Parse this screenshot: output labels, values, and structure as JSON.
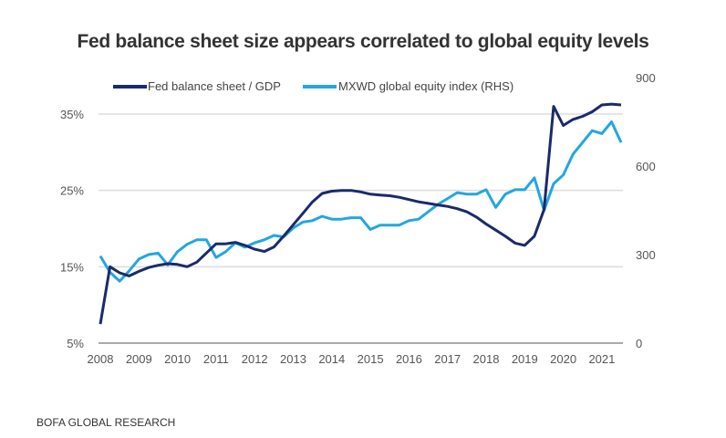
{
  "chart_data": {
    "type": "line",
    "title": "Fed balance sheet size appears correlated to global equity levels",
    "source": "BOFA GLOBAL RESEARCH",
    "x_ticks": [
      "2008",
      "2009",
      "2010",
      "2011",
      "2012",
      "2013",
      "2014",
      "2015",
      "2016",
      "2017",
      "2018",
      "2019",
      "2020",
      "2021"
    ],
    "x_range": [
      2008,
      2021.55
    ],
    "left_axis": {
      "ticks": [
        "5%",
        "15%",
        "25%",
        "35%"
      ],
      "tick_values": [
        5,
        15,
        25,
        35
      ],
      "range": [
        5,
        35
      ]
    },
    "right_axis": {
      "ticks": [
        "0",
        "300",
        "600",
        "900"
      ],
      "tick_values": [
        0,
        300,
        600,
        900
      ],
      "range": [
        0,
        900
      ]
    },
    "grid": true,
    "legend_position": "top",
    "x": [
      2008,
      2008.25,
      2008.5,
      2008.75,
      2009,
      2009.25,
      2009.5,
      2009.75,
      2010,
      2010.25,
      2010.5,
      2010.75,
      2011,
      2011.25,
      2011.5,
      2011.75,
      2012,
      2012.25,
      2012.5,
      2012.75,
      2013,
      2013.25,
      2013.5,
      2013.75,
      2014,
      2014.25,
      2014.5,
      2014.75,
      2015,
      2015.25,
      2015.5,
      2015.75,
      2016,
      2016.25,
      2016.5,
      2016.75,
      2017,
      2017.25,
      2017.5,
      2017.75,
      2018,
      2018.25,
      2018.5,
      2018.75,
      2019,
      2019.25,
      2019.5,
      2019.75,
      2020,
      2020.25,
      2020.5,
      2020.75,
      2021,
      2021.25,
      2021.5
    ],
    "series": [
      {
        "name": "Fed balance sheet / GDP",
        "axis": "left",
        "color": "#1b2a6b",
        "values": [
          7.5,
          15,
          14.2,
          13.8,
          14.4,
          14.9,
          15.2,
          15.4,
          15.3,
          15.0,
          15.6,
          16.8,
          18.0,
          18.0,
          18.2,
          17.8,
          17.3,
          17.0,
          17.6,
          19.0,
          20.5,
          22.0,
          23.5,
          24.6,
          24.9,
          25.0,
          25.0,
          24.8,
          24.5,
          24.4,
          24.3,
          24.1,
          23.8,
          23.5,
          23.3,
          23.1,
          22.9,
          22.6,
          22.2,
          21.5,
          20.6,
          19.8,
          19.0,
          18.1,
          17.8,
          19.0,
          22.5,
          36.0,
          33.5,
          34.3,
          34.7,
          35.3,
          36.2,
          36.3,
          36.2
        ]
      },
      {
        "name": "MXWD global equity index (RHS)",
        "axis": "right",
        "color": "#22a7de",
        "values": [
          295,
          240,
          210,
          245,
          285,
          300,
          305,
          265,
          310,
          335,
          350,
          350,
          290,
          310,
          340,
          325,
          340,
          350,
          365,
          360,
          390,
          410,
          415,
          430,
          420,
          420,
          425,
          425,
          385,
          400,
          400,
          400,
          415,
          420,
          445,
          470,
          490,
          510,
          505,
          505,
          520,
          460,
          505,
          520,
          520,
          560,
          450,
          540,
          570,
          640,
          680,
          720,
          710,
          750,
          680
        ]
      }
    ]
  }
}
